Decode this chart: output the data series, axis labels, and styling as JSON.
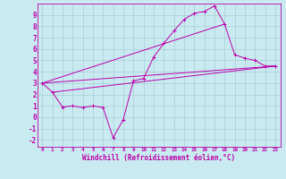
{
  "background_color": "#c8eaf0",
  "grid_color": "#aaccd8",
  "line_color": "#bb00aa",
  "xlabel": "Windchill (Refroidissement éolien,°C)",
  "xlim": [
    -0.5,
    23.5
  ],
  "ylim": [
    -2.6,
    10.0
  ],
  "xticks": [
    0,
    1,
    2,
    3,
    4,
    5,
    6,
    7,
    8,
    9,
    10,
    11,
    12,
    13,
    14,
    15,
    16,
    17,
    18,
    19,
    20,
    21,
    22,
    23
  ],
  "yticks": [
    -2,
    -1,
    0,
    1,
    2,
    3,
    4,
    5,
    6,
    7,
    8,
    9
  ],
  "line1_x": [
    0,
    1,
    2,
    3,
    4,
    5,
    6,
    7,
    8,
    9,
    10,
    11,
    12,
    13,
    14,
    15,
    16,
    17,
    18,
    19,
    20,
    21,
    22,
    23
  ],
  "line1_y": [
    3.0,
    2.2,
    0.9,
    1.0,
    0.85,
    1.0,
    0.85,
    -1.8,
    -0.2,
    3.2,
    3.4,
    5.3,
    6.5,
    7.6,
    8.6,
    9.15,
    9.3,
    9.8,
    8.2,
    5.5,
    5.2,
    5.0,
    4.5,
    4.5
  ],
  "line2_x": [
    1,
    23
  ],
  "line2_y": [
    2.2,
    4.5
  ],
  "line3_x": [
    0,
    23
  ],
  "line3_y": [
    3.0,
    4.5
  ],
  "line4_x": [
    0,
    18
  ],
  "line4_y": [
    3.0,
    8.2
  ]
}
